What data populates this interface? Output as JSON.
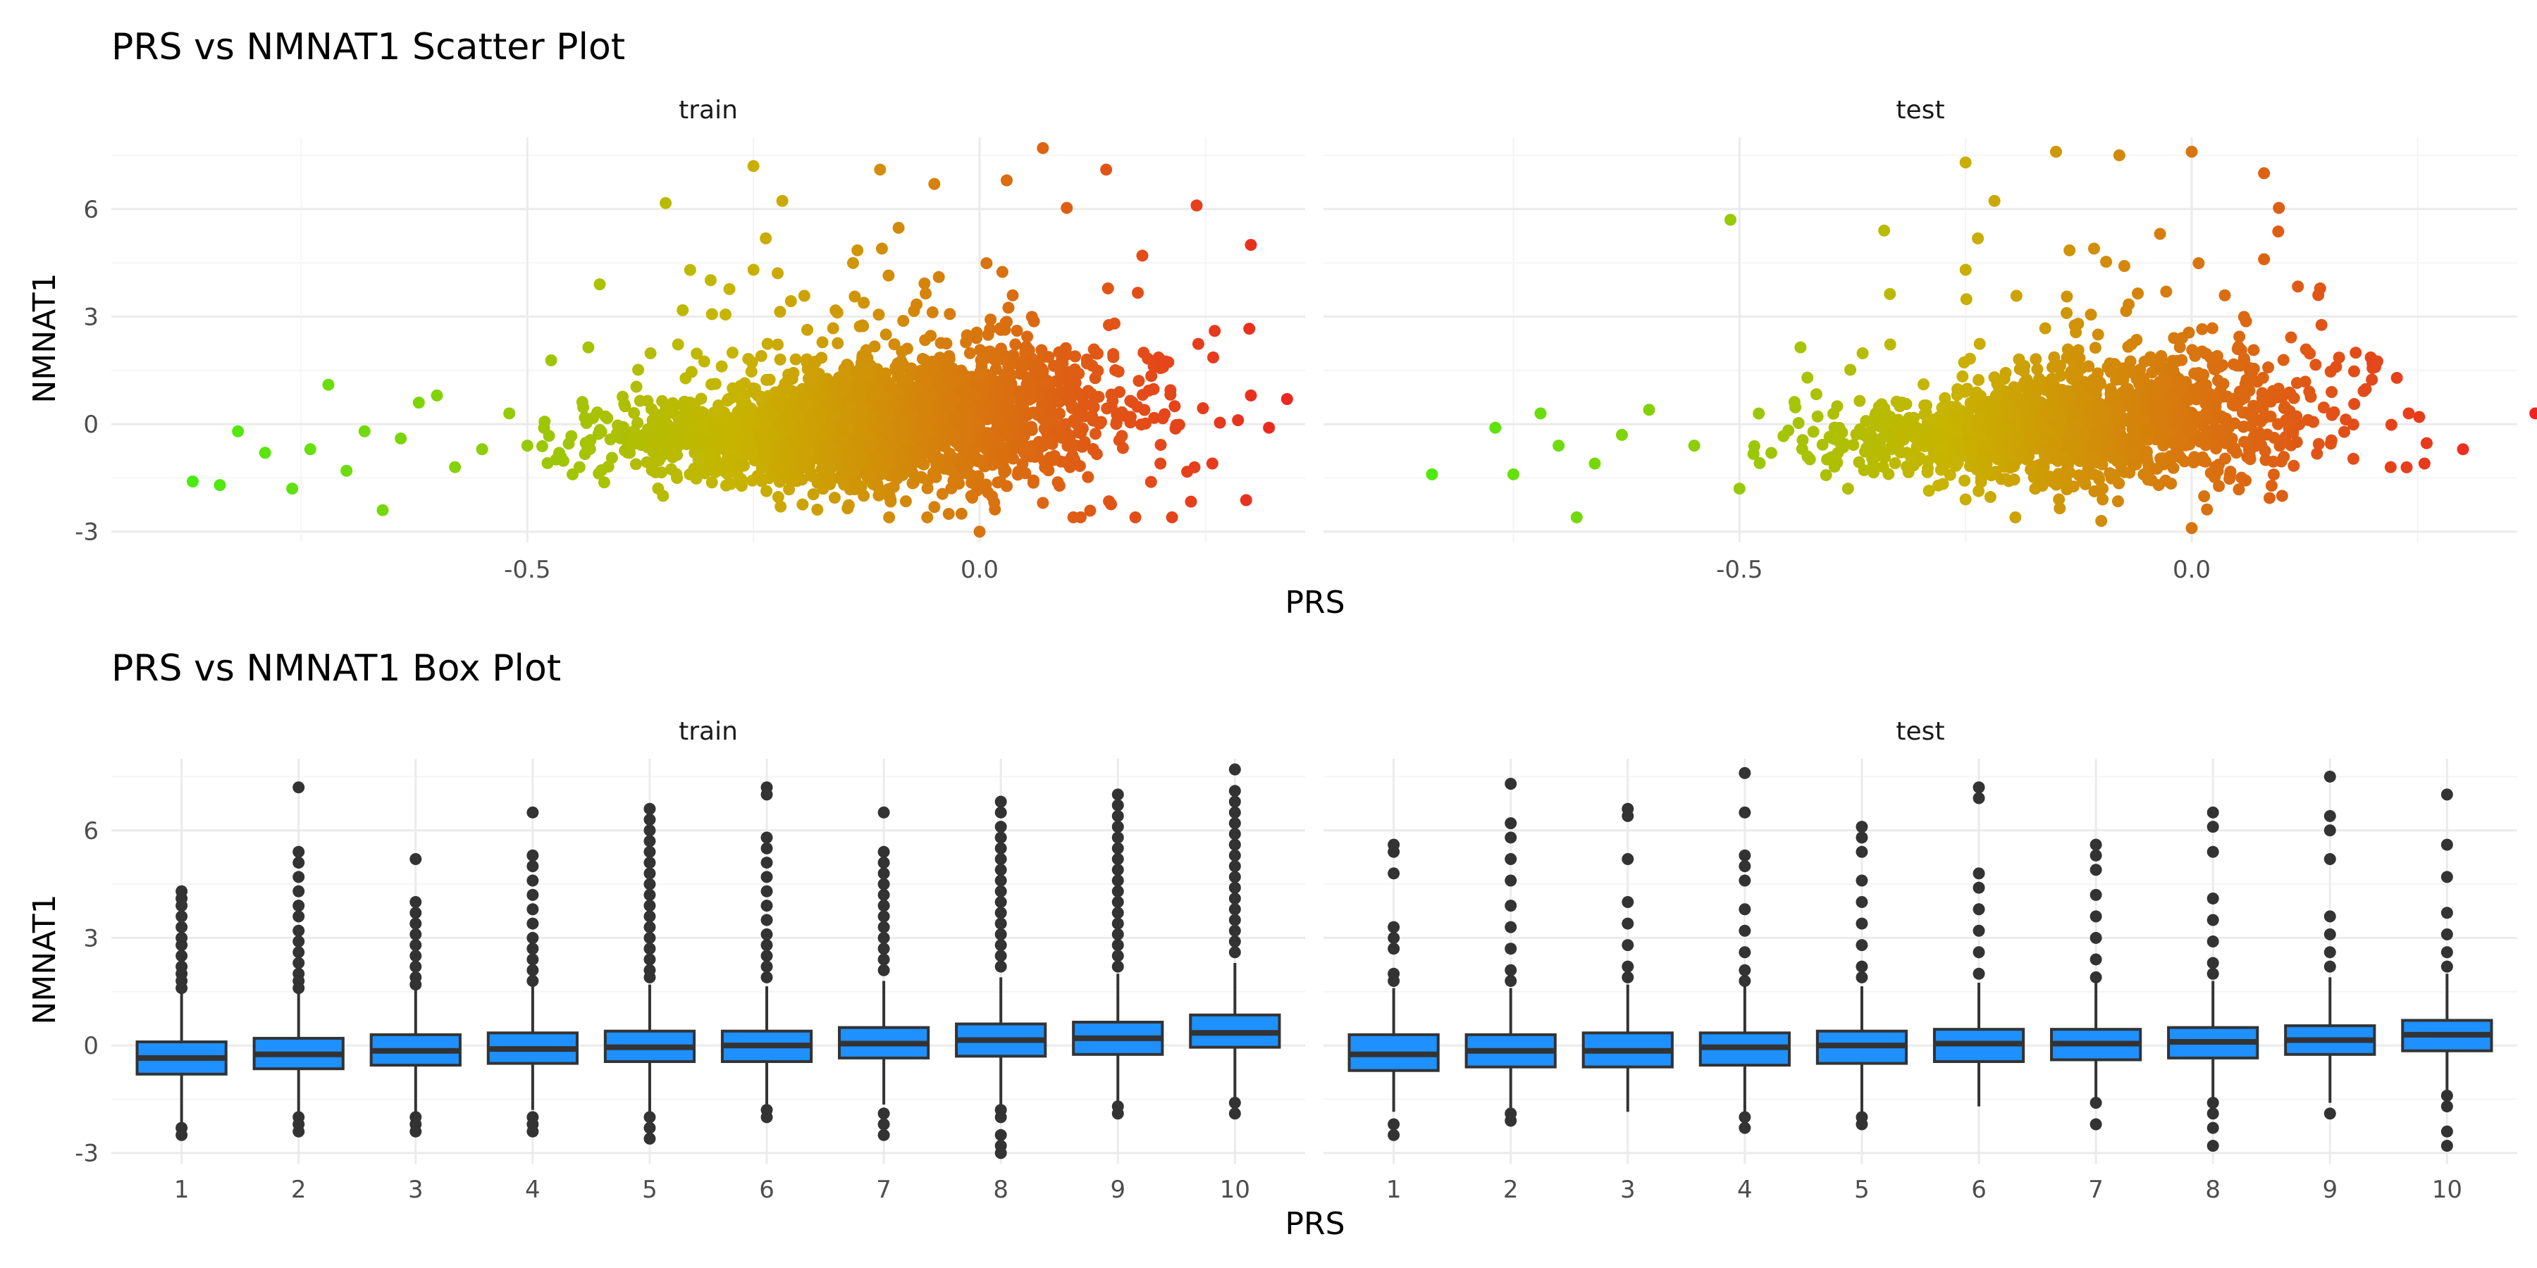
{
  "colors": {
    "gradient_low": "#44ee11",
    "gradient_mid": "#c8b400",
    "gradient_high": "#ee2222",
    "box_fill": "#1e90ff",
    "box_stroke": "#333333",
    "outlier": "#333333"
  },
  "chart_data": [
    {
      "type": "scatter",
      "title": "PRS vs NMNAT1 Scatter Plot",
      "xlabel": "PRS",
      "ylabel": "NMNAT1",
      "facets": [
        "train",
        "test"
      ],
      "xlim": [
        -0.96,
        0.36
      ],
      "ylim": [
        -3.3,
        8.0
      ],
      "x_ticks": [
        -0.5,
        0.0
      ],
      "x_tick_labels": [
        "-0.5",
        "0.0"
      ],
      "y_ticks": [
        -3,
        0,
        3,
        6
      ],
      "y_tick_labels": [
        "-3",
        "0",
        "3",
        "6"
      ],
      "grid": true,
      "color_scale": "gradient by PRS",
      "points": {
        "train": [
          [
            -0.87,
            -1.6
          ],
          [
            -0.84,
            -1.7
          ],
          [
            -0.82,
            -0.2
          ],
          [
            -0.79,
            -0.8
          ],
          [
            -0.76,
            -1.8
          ],
          [
            -0.74,
            -0.7
          ],
          [
            -0.72,
            1.1
          ],
          [
            -0.7,
            -1.3
          ],
          [
            -0.68,
            -0.2
          ],
          [
            -0.66,
            -2.4
          ],
          [
            -0.64,
            -0.4
          ],
          [
            -0.62,
            0.6
          ],
          [
            -0.6,
            0.8
          ],
          [
            -0.58,
            -1.2
          ],
          [
            -0.55,
            -0.7
          ],
          [
            -0.52,
            0.3
          ],
          [
            -0.5,
            -0.6
          ],
          [
            -0.42,
            3.9
          ],
          [
            -0.32,
            4.3
          ],
          [
            -0.25,
            7.2
          ],
          [
            -0.11,
            7.1
          ],
          [
            -0.05,
            6.7
          ],
          [
            0.03,
            6.8
          ],
          [
            0.07,
            7.7
          ],
          [
            0.14,
            7.1
          ],
          [
            0.24,
            6.1
          ],
          [
            0.3,
            5.0
          ],
          [
            0.26,
            2.6
          ],
          [
            0.3,
            0.8
          ],
          [
            0.34,
            0.7
          ],
          [
            0.32,
            -0.1
          ],
          [
            0.2,
            -1.1
          ],
          [
            0.1,
            -1.2
          ],
          [
            -0.02,
            -2.5
          ],
          [
            -0.1,
            -2.6
          ],
          [
            -0.22,
            -2.3
          ],
          [
            -0.35,
            -2.0
          ],
          [
            -0.45,
            -1.4
          ],
          [
            0.0,
            -3.0
          ],
          [
            0.18,
            4.7
          ]
        ],
        "test": [
          [
            -0.84,
            -1.4
          ],
          [
            -0.77,
            -0.1
          ],
          [
            -0.75,
            -1.4
          ],
          [
            -0.72,
            0.3
          ],
          [
            -0.7,
            -0.6
          ],
          [
            -0.68,
            -2.6
          ],
          [
            -0.66,
            -1.1
          ],
          [
            -0.63,
            -0.3
          ],
          [
            -0.6,
            0.4
          ],
          [
            -0.55,
            -0.6
          ],
          [
            -0.51,
            5.7
          ],
          [
            -0.34,
            5.4
          ],
          [
            -0.25,
            7.3
          ],
          [
            -0.15,
            7.6
          ],
          [
            -0.08,
            7.5
          ],
          [
            0.0,
            7.6
          ],
          [
            0.08,
            7.0
          ],
          [
            0.08,
            4.6
          ],
          [
            0.14,
            3.6
          ],
          [
            0.2,
            1.7
          ],
          [
            0.24,
            0.3
          ],
          [
            0.3,
            -0.7
          ],
          [
            0.22,
            -1.2
          ],
          [
            0.38,
            0.3
          ],
          [
            0.1,
            -2.0
          ],
          [
            0.0,
            -2.9
          ],
          [
            -0.1,
            -2.7
          ],
          [
            -0.25,
            -2.1
          ],
          [
            -0.38,
            -1.8
          ],
          [
            -0.5,
            -1.8
          ]
        ]
      }
    },
    {
      "type": "box",
      "title": "PRS vs NMNAT1 Box Plot",
      "xlabel": "PRS",
      "ylabel": "NMNAT1",
      "facets": [
        "train",
        "test"
      ],
      "categories": [
        "1",
        "2",
        "3",
        "4",
        "5",
        "6",
        "7",
        "8",
        "9",
        "10"
      ],
      "ylim": [
        -3.3,
        8.0
      ],
      "y_ticks": [
        -3,
        0,
        3,
        6
      ],
      "y_tick_labels": [
        "-3",
        "0",
        "3",
        "6"
      ],
      "grid": true,
      "series": [
        {
          "facet": "train",
          "boxes": [
            {
              "q1": -0.8,
              "median": -0.35,
              "q3": 0.1,
              "lower": -2.15,
              "upper": 1.45,
              "outliers": [
                4.3,
                4.1,
                3.9,
                3.6,
                3.3,
                3.0,
                2.8,
                2.5,
                2.2,
                2.0,
                1.8,
                1.6,
                -2.3,
                -2.5
              ]
            },
            {
              "q1": -0.65,
              "median": -0.25,
              "q3": 0.2,
              "lower": -1.95,
              "upper": 1.5,
              "outliers": [
                7.2,
                5.4,
                5.1,
                4.7,
                4.3,
                3.9,
                3.6,
                3.2,
                2.9,
                2.6,
                2.3,
                2.0,
                1.8,
                1.6,
                -2.0,
                -2.2,
                -2.4
              ]
            },
            {
              "q1": -0.55,
              "median": -0.15,
              "q3": 0.3,
              "lower": -1.9,
              "upper": 1.6,
              "outliers": [
                5.2,
                4.0,
                3.7,
                3.4,
                3.1,
                2.8,
                2.5,
                2.2,
                1.9,
                1.7,
                -2.0,
                -2.2,
                -2.4
              ]
            },
            {
              "q1": -0.5,
              "median": -0.1,
              "q3": 0.35,
              "lower": -1.8,
              "upper": 1.65,
              "outliers": [
                6.5,
                5.3,
                5.0,
                4.6,
                4.2,
                3.8,
                3.4,
                3.0,
                2.7,
                2.4,
                2.1,
                1.8,
                -2.0,
                -2.2,
                -2.4
              ]
            },
            {
              "q1": -0.45,
              "median": -0.05,
              "q3": 0.4,
              "lower": -1.9,
              "upper": 1.7,
              "outliers": [
                6.6,
                6.3,
                6.0,
                5.7,
                5.4,
                5.1,
                4.8,
                4.5,
                4.2,
                3.9,
                3.6,
                3.3,
                3.0,
                2.7,
                2.4,
                2.1,
                1.9,
                -2.0,
                -2.3,
                -2.6
              ]
            },
            {
              "q1": -0.45,
              "median": 0.0,
              "q3": 0.4,
              "lower": -1.7,
              "upper": 1.65,
              "outliers": [
                7.2,
                7.0,
                5.8,
                5.5,
                5.1,
                4.7,
                4.3,
                3.9,
                3.5,
                3.1,
                2.8,
                2.5,
                2.2,
                1.9,
                -1.8,
                -2.0
              ]
            },
            {
              "q1": -0.35,
              "median": 0.05,
              "q3": 0.5,
              "lower": -1.65,
              "upper": 1.8,
              "outliers": [
                6.5,
                5.4,
                5.1,
                4.8,
                4.5,
                4.2,
                3.9,
                3.6,
                3.3,
                3.0,
                2.7,
                2.4,
                2.1,
                -1.9,
                -2.2,
                -2.5
              ]
            },
            {
              "q1": -0.3,
              "median": 0.15,
              "q3": 0.6,
              "lower": -1.65,
              "upper": 1.9,
              "outliers": [
                6.8,
                6.5,
                6.1,
                5.8,
                5.5,
                5.2,
                4.9,
                4.6,
                4.3,
                4.0,
                3.7,
                3.4,
                3.1,
                2.8,
                2.5,
                2.2,
                -1.8,
                -2.0,
                -2.5,
                -2.8,
                -3.0
              ]
            },
            {
              "q1": -0.25,
              "median": 0.2,
              "q3": 0.65,
              "lower": -1.55,
              "upper": 2.0,
              "outliers": [
                7.0,
                6.7,
                6.4,
                6.1,
                5.8,
                5.5,
                5.2,
                4.9,
                4.6,
                4.3,
                4.0,
                3.7,
                3.4,
                3.1,
                2.8,
                2.5,
                2.2,
                -1.7,
                -1.9
              ]
            },
            {
              "q1": -0.05,
              "median": 0.35,
              "q3": 0.85,
              "lower": -1.45,
              "upper": 2.3,
              "outliers": [
                7.7,
                7.1,
                6.8,
                6.5,
                6.2,
                5.9,
                5.6,
                5.3,
                5.0,
                4.7,
                4.4,
                4.1,
                3.8,
                3.5,
                3.2,
                2.9,
                2.6,
                -1.6,
                -1.9
              ]
            }
          ]
        },
        {
          "facet": "test",
          "boxes": [
            {
              "q1": -0.7,
              "median": -0.25,
              "q3": 0.3,
              "lower": -1.85,
              "upper": 1.6,
              "outliers": [
                5.6,
                5.4,
                4.8,
                3.3,
                3.0,
                2.7,
                2.0,
                1.8,
                -2.2,
                -2.5
              ]
            },
            {
              "q1": -0.6,
              "median": -0.15,
              "q3": 0.3,
              "lower": -1.8,
              "upper": 1.6,
              "outliers": [
                7.3,
                6.2,
                5.8,
                5.2,
                4.6,
                3.9,
                3.3,
                2.7,
                2.1,
                1.8,
                -1.9,
                -2.1
              ]
            },
            {
              "q1": -0.6,
              "median": -0.15,
              "q3": 0.35,
              "lower": -1.85,
              "upper": 1.7,
              "outliers": [
                6.6,
                6.4,
                5.2,
                4.0,
                3.4,
                2.8,
                2.2,
                1.9
              ]
            },
            {
              "q1": -0.55,
              "median": -0.05,
              "q3": 0.35,
              "lower": -1.85,
              "upper": 1.65,
              "outliers": [
                7.6,
                6.5,
                5.3,
                5.0,
                4.6,
                3.8,
                3.2,
                2.6,
                2.1,
                1.8,
                -2.0,
                -2.3
              ]
            },
            {
              "q1": -0.5,
              "median": 0.0,
              "q3": 0.4,
              "lower": -1.85,
              "upper": 1.65,
              "outliers": [
                6.1,
                5.8,
                5.4,
                4.6,
                4.0,
                3.4,
                2.8,
                2.2,
                1.9,
                -2.0,
                -2.2
              ]
            },
            {
              "q1": -0.45,
              "median": 0.05,
              "q3": 0.45,
              "lower": -1.7,
              "upper": 1.75,
              "outliers": [
                7.2,
                6.9,
                4.8,
                4.4,
                3.8,
                3.2,
                2.6,
                2.0
              ]
            },
            {
              "q1": -0.4,
              "median": 0.05,
              "q3": 0.45,
              "lower": -1.6,
              "upper": 1.75,
              "outliers": [
                5.6,
                5.3,
                4.9,
                4.2,
                3.6,
                3.0,
                2.4,
                1.9,
                -1.6,
                -2.2
              ]
            },
            {
              "q1": -0.35,
              "median": 0.1,
              "q3": 0.5,
              "lower": -1.5,
              "upper": 1.8,
              "outliers": [
                6.5,
                6.1,
                5.4,
                4.1,
                3.5,
                2.9,
                2.3,
                2.0,
                -1.6,
                -1.9,
                -2.3,
                -2.8
              ]
            },
            {
              "q1": -0.25,
              "median": 0.15,
              "q3": 0.55,
              "lower": -1.6,
              "upper": 1.9,
              "outliers": [
                7.5,
                6.4,
                6.0,
                5.2,
                3.6,
                3.1,
                2.6,
                2.2,
                -1.9
              ]
            },
            {
              "q1": -0.15,
              "median": 0.3,
              "q3": 0.7,
              "lower": -1.35,
              "upper": 2.0,
              "outliers": [
                7.0,
                5.6,
                4.7,
                3.7,
                3.1,
                2.6,
                2.2,
                -1.4,
                -1.7,
                -2.4,
                -2.8
              ]
            }
          ]
        }
      ]
    }
  ]
}
